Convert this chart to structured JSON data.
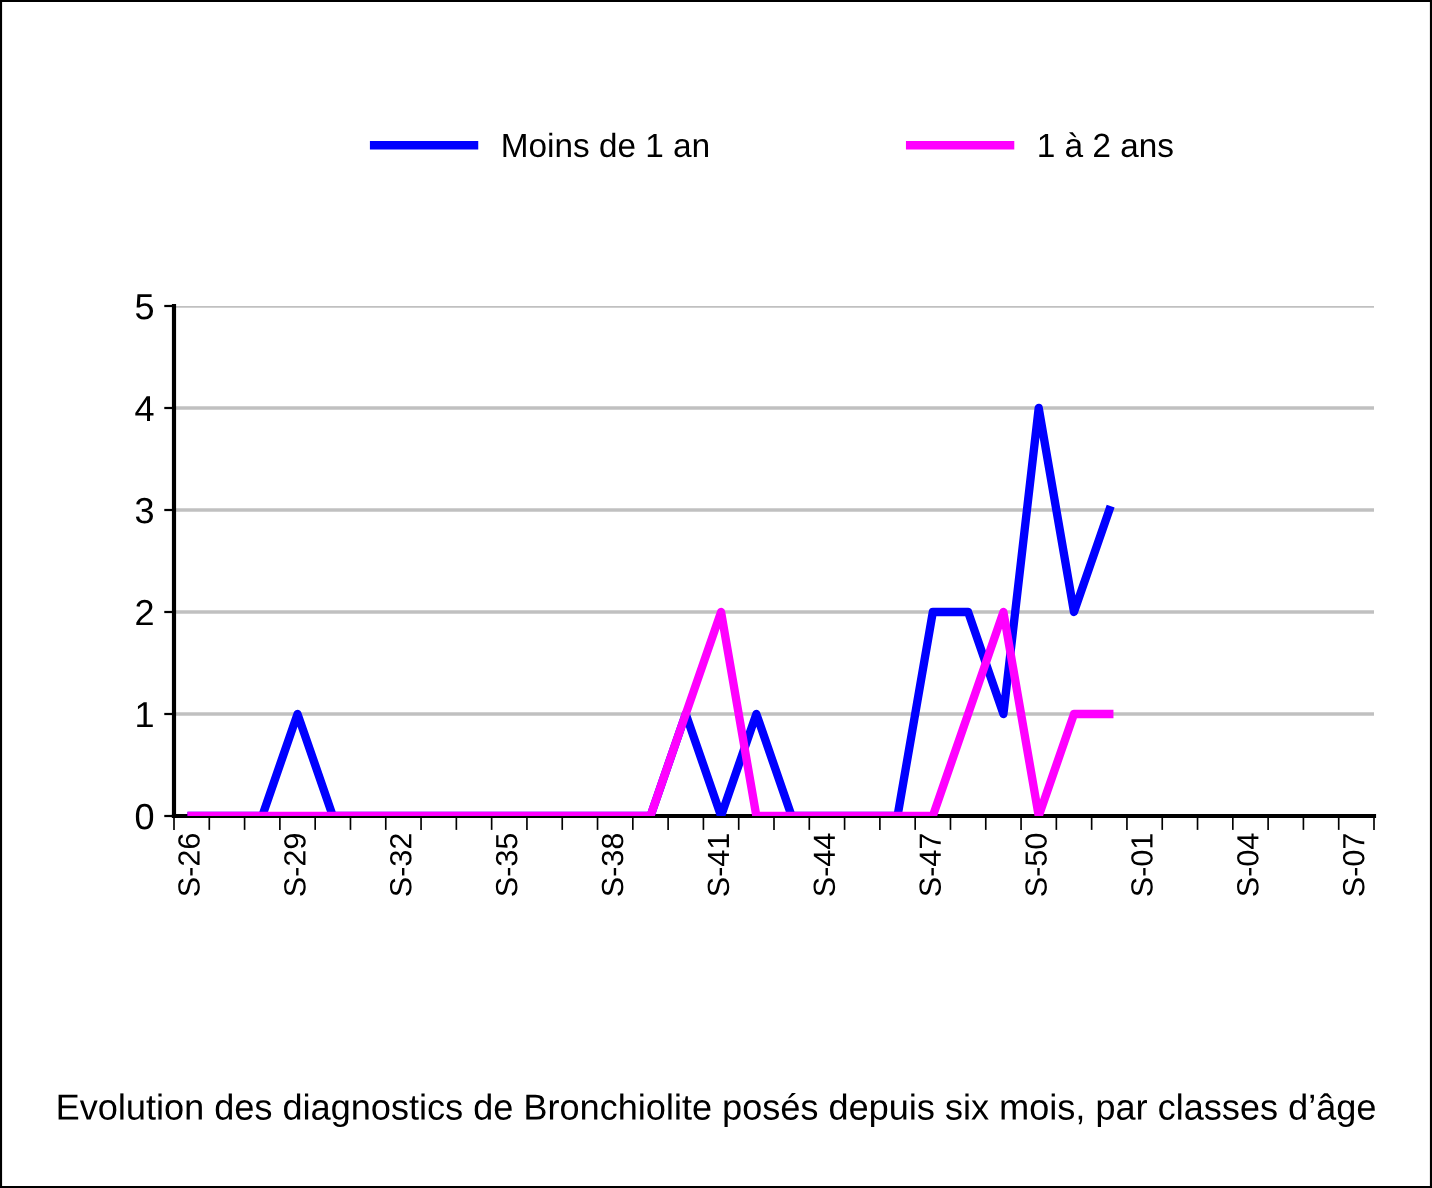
{
  "chart_data": {
    "type": "line",
    "title": "Evolution des diagnostics de Bronchiolite posés depuis six mois, par classes d’âge",
    "categories": [
      "S-26",
      null,
      null,
      "S-29",
      null,
      null,
      "S-32",
      null,
      null,
      "S-35",
      null,
      null,
      "S-38",
      null,
      null,
      "S-41",
      null,
      null,
      "S-44",
      null,
      null,
      "S-47",
      null,
      null,
      "S-50",
      null,
      null,
      "S-01",
      null,
      null,
      "S-04",
      null,
      null,
      "S-07"
    ],
    "series": [
      {
        "name": "Moins de 1 an",
        "color": "#0000ff",
        "values": [
          0,
          0,
          0,
          1,
          0,
          0,
          0,
          0,
          0,
          0,
          0,
          0,
          0,
          0,
          1,
          0,
          1,
          0,
          0,
          0,
          0,
          2,
          2,
          1,
          4,
          2,
          3,
          null,
          null,
          null,
          null,
          null,
          null,
          null
        ]
      },
      {
        "name": "1 à 2 ans",
        "color": "#ff00ff",
        "values": [
          0,
          0,
          0,
          0,
          0,
          0,
          0,
          0,
          0,
          0,
          0,
          0,
          0,
          0,
          1,
          2,
          0,
          0,
          0,
          0,
          0,
          0,
          1,
          2,
          0,
          1,
          1,
          null,
          null,
          null,
          null,
          null,
          null,
          null
        ]
      }
    ],
    "ylim": [
      0,
      5
    ],
    "yticks": [
      0,
      1,
      2,
      3,
      4,
      5
    ],
    "grid": "y",
    "legend": "top",
    "marker": "none",
    "line_style": "solid"
  }
}
